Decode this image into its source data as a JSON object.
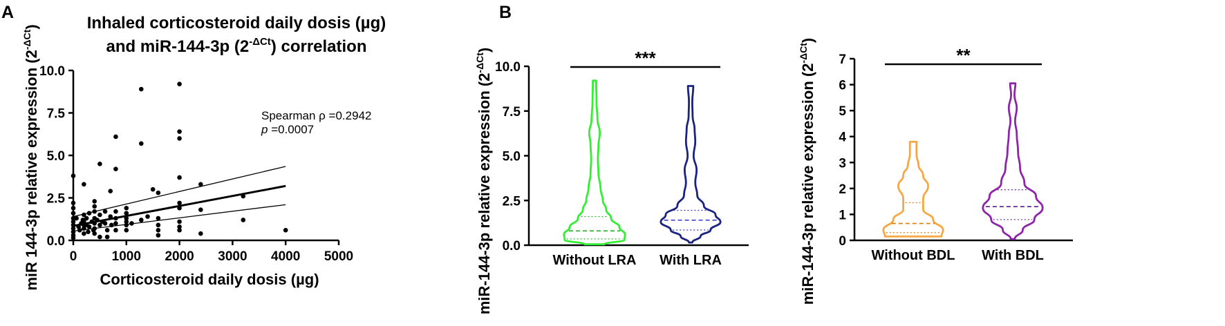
{
  "panels": {
    "a": {
      "letter": "A"
    },
    "b": {
      "letter": "B"
    }
  },
  "chart_data": [
    {
      "type": "scatter",
      "title_line1": "Inhaled corticosteroid daily dosis (µg)",
      "title_line2_prefix": "and miR-144-3p (2",
      "title_line2_sup": "-ΔCt",
      "title_line2_suffix": ") correlation",
      "xlabel": "Corticosteroid daily dosis (µg)",
      "ylabel": "miR 144-3p relative expression (2",
      "ylabel_sup": "-ΔCt",
      "ylabel_close": ")",
      "xlim": [
        0,
        5000
      ],
      "ylim": [
        0,
        10
      ],
      "xticks": [
        0,
        1000,
        2000,
        3000,
        4000,
        5000
      ],
      "xtick_labels": [
        "0",
        "1000",
        "2000",
        "3000",
        "4000",
        "5000"
      ],
      "yticks": [
        0,
        2.5,
        5,
        7.5,
        10
      ],
      "ytick_labels": [
        "0.0",
        "2.5",
        "5.0",
        "7.5",
        "10.0"
      ],
      "annotation_line1": "Spearman ρ =0.2942",
      "annotation_line2_italic": "p",
      "annotation_line2_rest": " =0.0007",
      "regression": {
        "x": [
          0,
          4000
        ],
        "y": [
          0.85,
          3.2
        ]
      },
      "ci_upper": {
        "x": [
          0,
          4000
        ],
        "y": [
          1.4,
          4.35
        ]
      },
      "ci_lower": {
        "x": [
          0,
          4000
        ],
        "y": [
          0.55,
          2.1
        ]
      },
      "points": [
        [
          0,
          3.8
        ],
        [
          0,
          2.2
        ],
        [
          0,
          1.9
        ],
        [
          0,
          1.6
        ],
        [
          0,
          1.3
        ],
        [
          0,
          1.1
        ],
        [
          0,
          0.9
        ],
        [
          0,
          0.7
        ],
        [
          0,
          0.5
        ],
        [
          0,
          0.3
        ],
        [
          0,
          0.15
        ],
        [
          60,
          1.3
        ],
        [
          100,
          0.8
        ],
        [
          120,
          0.6
        ],
        [
          150,
          1.0
        ],
        [
          180,
          1.2
        ],
        [
          200,
          3.3
        ],
        [
          200,
          1.5
        ],
        [
          200,
          1.1
        ],
        [
          200,
          0.9
        ],
        [
          200,
          0.7
        ],
        [
          200,
          0.4
        ],
        [
          250,
          1.3
        ],
        [
          250,
          0.9
        ],
        [
          280,
          0.5
        ],
        [
          300,
          1.6
        ],
        [
          300,
          0.8
        ],
        [
          350,
          1.1
        ],
        [
          380,
          0.6
        ],
        [
          400,
          2.3
        ],
        [
          400,
          2.0
        ],
        [
          400,
          1.7
        ],
        [
          400,
          1.3
        ],
        [
          400,
          1.0
        ],
        [
          400,
          0.7
        ],
        [
          400,
          0.4
        ],
        [
          450,
          1.2
        ],
        [
          500,
          4.5
        ],
        [
          500,
          1.5
        ],
        [
          500,
          0.9
        ],
        [
          500,
          0.2
        ],
        [
          550,
          1.1
        ],
        [
          600,
          1.7
        ],
        [
          600,
          1.0
        ],
        [
          640,
          0.6
        ],
        [
          640,
          0.2
        ],
        [
          700,
          2.9
        ],
        [
          700,
          1.4
        ],
        [
          720,
          0.9
        ],
        [
          800,
          6.1
        ],
        [
          800,
          4.2
        ],
        [
          800,
          1.7
        ],
        [
          800,
          1.3
        ],
        [
          800,
          1.0
        ],
        [
          800,
          0.6
        ],
        [
          1000,
          1.9
        ],
        [
          1000,
          1.6
        ],
        [
          1000,
          1.3
        ],
        [
          1000,
          1.1
        ],
        [
          1000,
          0.9
        ],
        [
          1000,
          0.6
        ],
        [
          1100,
          1.0
        ],
        [
          1280,
          8.9
        ],
        [
          1280,
          5.7
        ],
        [
          1280,
          1.2
        ],
        [
          1400,
          1.4
        ],
        [
          1500,
          3.0
        ],
        [
          1600,
          2.8
        ],
        [
          1600,
          1.3
        ],
        [
          1600,
          0.9
        ],
        [
          1600,
          0.6
        ],
        [
          1600,
          0.3
        ],
        [
          2000,
          9.2
        ],
        [
          2000,
          6.4
        ],
        [
          2000,
          6.0
        ],
        [
          2000,
          3.7
        ],
        [
          2000,
          2.2
        ],
        [
          2000,
          1.9
        ],
        [
          2000,
          1.1
        ],
        [
          2000,
          0.8
        ],
        [
          2000,
          0.6
        ],
        [
          2400,
          3.3
        ],
        [
          2400,
          1.8
        ],
        [
          2400,
          0.4
        ],
        [
          3200,
          2.6
        ],
        [
          3200,
          1.2
        ],
        [
          4000,
          0.6
        ]
      ]
    },
    {
      "type": "violin",
      "significance": "***",
      "ylabel": "miR-144-3p relative expression (2",
      "ylabel_sup": "-ΔCt",
      "ylabel_close": ")",
      "ylim": [
        0,
        10
      ],
      "yticks": [
        0,
        2.5,
        5,
        7.5,
        10
      ],
      "ytick_labels": [
        "0.0",
        "2.5",
        "5.0",
        "7.5",
        "10.0"
      ],
      "groups": [
        {
          "name": "Without LRA",
          "color": "#33ee33",
          "dark": "#22aa22",
          "min": 0.05,
          "max": 9.2,
          "q1": 0.35,
          "median": 0.8,
          "q3": 1.6,
          "profile": [
            [
              0.05,
              0.3
            ],
            [
              0.3,
              0.9
            ],
            [
              0.6,
              0.92
            ],
            [
              1.0,
              0.75
            ],
            [
              1.5,
              0.5
            ],
            [
              2.0,
              0.35
            ],
            [
              2.5,
              0.25
            ],
            [
              3.2,
              0.18
            ],
            [
              4.0,
              0.12
            ],
            [
              4.8,
              0.1
            ],
            [
              5.6,
              0.12
            ],
            [
              6.3,
              0.16
            ],
            [
              7.0,
              0.09
            ],
            [
              8.0,
              0.06
            ],
            [
              9.2,
              0.05
            ]
          ]
        },
        {
          "name": "With LRA",
          "color": "#1a237e",
          "dark": "#3333cc",
          "min": 0.15,
          "max": 8.9,
          "q1": 0.85,
          "median": 1.4,
          "q3": 1.95,
          "profile": [
            [
              0.15,
              0.05
            ],
            [
              0.5,
              0.3
            ],
            [
              0.85,
              0.6
            ],
            [
              1.3,
              0.9
            ],
            [
              1.7,
              0.75
            ],
            [
              2.2,
              0.4
            ],
            [
              2.8,
              0.2
            ],
            [
              3.5,
              0.14
            ],
            [
              4.2,
              0.18
            ],
            [
              5.0,
              0.09
            ],
            [
              5.8,
              0.14
            ],
            [
              6.5,
              0.12
            ],
            [
              7.2,
              0.06
            ],
            [
              8.0,
              0.05
            ],
            [
              8.9,
              0.08
            ]
          ]
        }
      ]
    },
    {
      "type": "violin",
      "significance": "**",
      "ylabel": "miR-144-3p relative expression (2",
      "ylabel_sup": "-ΔCt",
      "ylabel_close": ")",
      "ylim": [
        0,
        7
      ],
      "yticks": [
        0,
        1,
        2,
        3,
        4,
        5,
        6,
        7
      ],
      "ytick_labels": [
        "0",
        "1",
        "2",
        "3",
        "4",
        "5",
        "6",
        "7"
      ],
      "groups": [
        {
          "name": "Without BDL",
          "color": "#f5a742",
          "dark": "#e07b00",
          "min": 0.15,
          "max": 3.8,
          "q1": 0.3,
          "median": 0.65,
          "q3": 1.45,
          "profile": [
            [
              0.15,
              0.85
            ],
            [
              0.4,
              0.9
            ],
            [
              0.8,
              0.6
            ],
            [
              1.2,
              0.3
            ],
            [
              1.6,
              0.3
            ],
            [
              2.1,
              0.45
            ],
            [
              2.5,
              0.3
            ],
            [
              2.9,
              0.16
            ],
            [
              3.3,
              0.1
            ],
            [
              3.8,
              0.1
            ]
          ]
        },
        {
          "name": "With BDL",
          "color": "#8e24aa",
          "dark": "#5a1a8a",
          "min": 0.05,
          "max": 6.05,
          "q1": 0.8,
          "median": 1.3,
          "q3": 1.95,
          "profile": [
            [
              0.05,
              0.06
            ],
            [
              0.4,
              0.3
            ],
            [
              0.8,
              0.65
            ],
            [
              1.25,
              0.9
            ],
            [
              1.7,
              0.7
            ],
            [
              2.2,
              0.35
            ],
            [
              2.8,
              0.22
            ],
            [
              3.4,
              0.16
            ],
            [
              4.1,
              0.12
            ],
            [
              4.6,
              0.07
            ],
            [
              5.1,
              0.12
            ],
            [
              5.6,
              0.05
            ],
            [
              6.05,
              0.08
            ]
          ]
        }
      ]
    }
  ]
}
